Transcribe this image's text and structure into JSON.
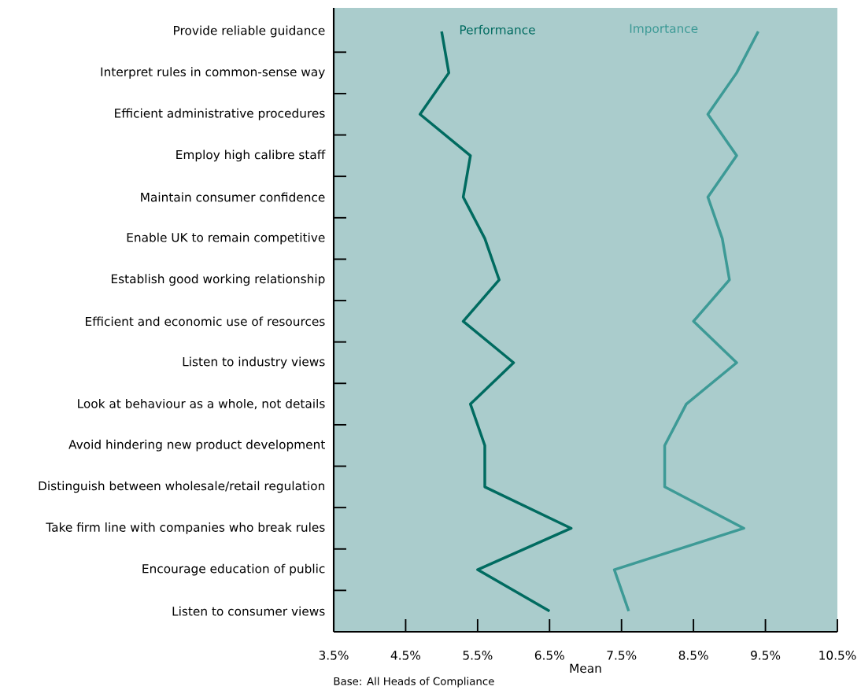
{
  "chart_data": {
    "type": "line",
    "orientation": "horizontal",
    "xlabel": "Mean",
    "categories": [
      "Provide reliable guidance",
      "Interpret rules in common-sense way",
      "Efficient administrative procedures",
      "Employ high calibre staff",
      "Maintain consumer confidence",
      "Enable UK to remain competitive",
      "Establish good working relationship",
      "Efficient and economic use of resources",
      "Listen to industry views",
      "Look at behaviour as a whole, not details",
      "Avoid hindering new product development",
      "Distinguish between wholesale/retail regulation",
      "Take firm line with companies who break rules",
      "Encourage education of public",
      "Listen to consumer views"
    ],
    "series": [
      {
        "name": "Performance",
        "color": "#006b60",
        "values": [
          5.0,
          5.1,
          4.7,
          5.4,
          5.3,
          5.6,
          5.8,
          5.3,
          6.0,
          5.4,
          5.6,
          5.6,
          6.8,
          5.5,
          6.5
        ]
      },
      {
        "name": "Importance",
        "color": "#3d9a96",
        "values": [
          9.4,
          9.1,
          8.7,
          9.1,
          8.7,
          8.9,
          9.0,
          8.5,
          9.1,
          8.4,
          8.1,
          8.1,
          9.2,
          7.4,
          7.6
        ]
      }
    ],
    "xlim": [
      3.5,
      10.5
    ],
    "xticks": [
      {
        "value": 3.5,
        "label": "3.5%"
      },
      {
        "value": 4.5,
        "label": "4.5%"
      },
      {
        "value": 5.5,
        "label": "5.5%"
      },
      {
        "value": 6.5,
        "label": "6.5%"
      },
      {
        "value": 7.5,
        "label": "7.5%"
      },
      {
        "value": 8.5,
        "label": "8.5%"
      },
      {
        "value": 9.5,
        "label": "9.5%"
      },
      {
        "value": 10.5,
        "label": "10.5%"
      }
    ],
    "annotations": [
      "Base: All Heads of Compliance"
    ],
    "legend": false,
    "grid": false
  }
}
